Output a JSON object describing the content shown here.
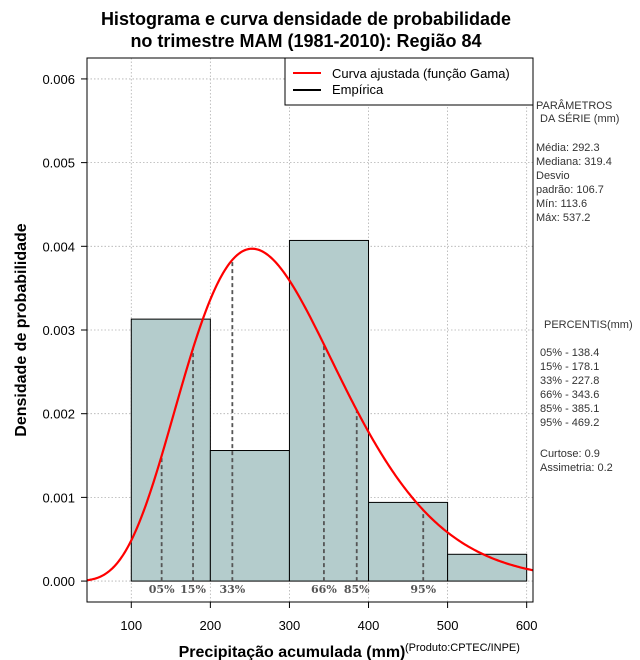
{
  "chart_data": {
    "type": "bar",
    "title": [
      "Histograma e curva densidade de probabilidade",
      "no trimestre MAM (1981-2010): Região 84"
    ],
    "xlabel": "Precipitação acumulada (mm)",
    "ylabel": "Densidade de probabilidade",
    "credit": "(Produto:CPTEC/INPE)",
    "xlim": [
      44,
      608
    ],
    "ylim": [
      -0.00025,
      0.00625
    ],
    "xticks": [
      100,
      200,
      300,
      400,
      500,
      600
    ],
    "yticks": [
      0.0,
      0.001,
      0.002,
      0.003,
      0.004,
      0.005,
      0.006
    ],
    "ytick_labels": [
      "0.000",
      "0.001",
      "0.002",
      "0.003",
      "0.004",
      "0.005",
      "0.006"
    ],
    "grid": true,
    "bins": [
      {
        "x0": 100,
        "x1": 200,
        "density": 0.00313
      },
      {
        "x0": 200,
        "x1": 300,
        "density": 0.00156
      },
      {
        "x0": 300,
        "x1": 400,
        "density": 0.00407
      },
      {
        "x0": 400,
        "x1": 500,
        "density": 0.00094
      },
      {
        "x0": 500,
        "x1": 600,
        "density": 0.00032
      }
    ],
    "gamma_fit": {
      "shape": 7.5,
      "scale": 38.9
    },
    "percentile_markers": [
      {
        "label": "05%",
        "x": 138.4
      },
      {
        "label": "15%",
        "x": 178.1
      },
      {
        "label": "33%",
        "x": 227.8
      },
      {
        "label": "66%",
        "x": 343.6
      },
      {
        "label": "85%",
        "x": 385.1
      },
      {
        "label": "95%",
        "x": 469.2
      }
    ],
    "legend": [
      {
        "label": "Curva ajustada (função Gama)",
        "color": "#ff0000"
      },
      {
        "label": "Empírica",
        "color": "#000000"
      }
    ],
    "colors": {
      "bar_fill": "#b4cccc",
      "curve": "#ff0000",
      "grid": "#b0b0b0",
      "marker": "#555555"
    }
  },
  "stats_panel": {
    "parametros_title": [
      "PARÂMETROS",
      "DA SÉRIE (mm)"
    ],
    "parametros": [
      "Média:  292.3",
      "Mediana:  319.4",
      "Desvio",
      "padrão:  106.7",
      "Mín:  113.6",
      "Máx:  537.2"
    ],
    "percentis_title": "PERCENTIS(mm)",
    "percentis": [
      "05% -  138.4",
      "15% -  178.1",
      "33% -  227.8",
      "66% -  343.6",
      "85% -  385.1",
      "95% -  469.2"
    ],
    "extra": [
      "Curtose:  0.9",
      "Assimetria:  0.2"
    ]
  }
}
